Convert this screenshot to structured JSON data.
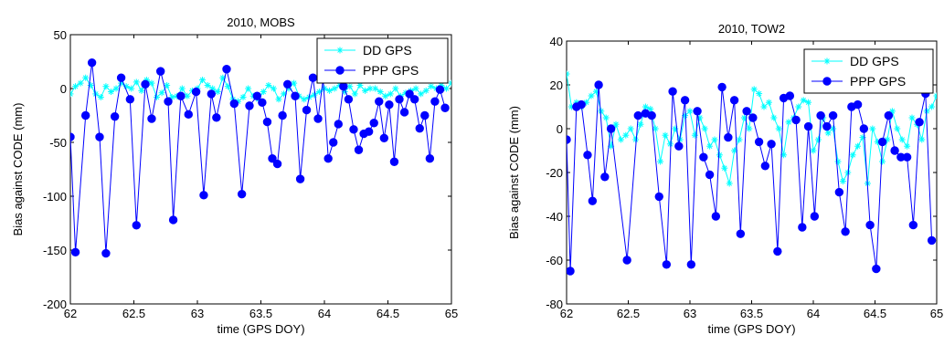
{
  "colors": {
    "dd": "#00ffff",
    "ppp": "#0000ff",
    "ppp_fill": "#0000ff",
    "axis": "#000000",
    "background": "#ffffff"
  },
  "chart_data": [
    {
      "type": "line",
      "title": "2010, MOBS",
      "xlabel": "time (GPS DOY)",
      "ylabel": "Bias against CODE (mm)",
      "xlim": [
        62,
        65
      ],
      "ylim": [
        -200,
        50
      ],
      "xticks": [
        62,
        62.5,
        63,
        63.5,
        64,
        64.5,
        65
      ],
      "xtick_labels": [
        "62",
        "62.5",
        "63",
        "63.5",
        "64",
        "64.5",
        "65"
      ],
      "yticks": [
        -200,
        -150,
        -100,
        -50,
        0,
        50
      ],
      "ytick_labels": [
        "-200",
        "-150",
        "-100",
        "-50",
        "0",
        "50"
      ],
      "grid": false,
      "legend_position": "top-right",
      "series": [
        {
          "name": "DD GPS",
          "marker": "asterisk",
          "x": [
            62.0,
            62.04,
            62.08,
            62.12,
            62.16,
            62.2,
            62.24,
            62.28,
            62.32,
            62.36,
            62.4,
            62.44,
            62.48,
            62.52,
            62.56,
            62.6,
            62.64,
            62.68,
            62.72,
            62.76,
            62.8,
            62.84,
            62.88,
            62.92,
            62.96,
            63.0,
            63.04,
            63.08,
            63.12,
            63.16,
            63.2,
            63.24,
            63.28,
            63.32,
            63.36,
            63.4,
            63.44,
            63.48,
            63.52,
            63.56,
            63.6,
            63.64,
            63.68,
            63.72,
            63.76,
            63.8,
            63.84,
            63.88,
            63.92,
            63.96,
            64.0,
            64.04,
            64.08,
            64.12,
            64.16,
            64.2,
            64.24,
            64.28,
            64.32,
            64.36,
            64.4,
            64.44,
            64.48,
            64.52,
            64.56,
            64.6,
            64.64,
            64.68,
            64.72,
            64.76,
            64.8,
            64.84,
            64.88,
            64.92,
            64.96,
            65.0
          ],
          "values": [
            -5,
            2,
            5,
            10,
            3,
            -5,
            -8,
            2,
            -3,
            0,
            5,
            2,
            0,
            6,
            -2,
            8,
            5,
            -8,
            -4,
            3,
            -8,
            -7,
            0,
            -7,
            -2,
            0,
            8,
            3,
            0,
            -3,
            10,
            2,
            -10,
            -12,
            -8,
            0,
            -7,
            -10,
            -3,
            3,
            0,
            -10,
            -5,
            0,
            5,
            -7,
            -10,
            -8,
            -6,
            -3,
            0,
            -2,
            0,
            3,
            -3,
            2,
            -5,
            3,
            -2,
            0,
            0,
            -3,
            -7,
            -5,
            0,
            -7,
            -4,
            -2,
            0,
            -5,
            -2,
            2,
            0,
            3,
            0,
            5
          ]
        },
        {
          "name": "PPP GPS",
          "marker": "circle",
          "x": [
            62.0,
            62.04,
            62.12,
            62.17,
            62.23,
            62.28,
            62.35,
            62.4,
            62.47,
            62.52,
            62.59,
            62.64,
            62.71,
            62.77,
            62.81,
            62.87,
            62.93,
            62.99,
            63.05,
            63.11,
            63.15,
            63.23,
            63.29,
            63.35,
            63.41,
            63.47,
            63.51,
            63.55,
            63.59,
            63.63,
            63.67,
            63.71,
            63.77,
            63.81,
            63.86,
            63.91,
            63.95,
            63.99,
            64.03,
            64.07,
            64.11,
            64.15,
            64.19,
            64.23,
            64.27,
            64.31,
            64.35,
            64.39,
            64.43,
            64.47,
            64.51,
            64.55,
            64.59,
            64.63,
            64.67,
            64.71,
            64.75,
            64.79,
            64.83,
            64.87,
            64.91,
            64.95
          ],
          "values": [
            -45,
            -152,
            -25,
            24,
            -45,
            -153,
            -26,
            10,
            -10,
            -127,
            4,
            -28,
            16,
            -12,
            -122,
            -7,
            -24,
            -3,
            -99,
            -5,
            -27,
            18,
            -14,
            -98,
            -16,
            -7,
            -13,
            -31,
            -65,
            -70,
            -25,
            4,
            -7,
            -84,
            -20,
            10,
            -28,
            9,
            -65,
            -50,
            -33,
            2,
            -10,
            -38,
            -57,
            -42,
            -40,
            -32,
            -12,
            -46,
            -15,
            -68,
            -10,
            -22,
            -5,
            -10,
            -37,
            -25,
            -65,
            -12,
            -1,
            -18
          ]
        }
      ]
    },
    {
      "type": "line",
      "title": "2010, TOW2",
      "xlabel": "time (GPS DOY)",
      "ylabel": "Bias against CODE (mm)",
      "xlim": [
        62,
        65
      ],
      "ylim": [
        -80,
        40
      ],
      "xticks": [
        62,
        62.5,
        63,
        63.5,
        64,
        64.5,
        65
      ],
      "xtick_labels": [
        "62",
        "62.5",
        "63",
        "63.5",
        "64",
        "64.5",
        "65"
      ],
      "yticks": [
        -80,
        -60,
        -40,
        -20,
        0,
        20,
        40
      ],
      "ytick_labels": [
        "-80",
        "-60",
        "-40",
        "-20",
        "0",
        "20",
        "40"
      ],
      "grid": false,
      "legend_position": "top-right",
      "series": [
        {
          "name": "DD GPS",
          "marker": "asterisk",
          "x": [
            62.0,
            62.04,
            62.08,
            62.12,
            62.16,
            62.2,
            62.24,
            62.28,
            62.32,
            62.36,
            62.4,
            62.44,
            62.48,
            62.52,
            62.56,
            62.6,
            62.64,
            62.68,
            62.72,
            62.76,
            62.8,
            62.84,
            62.88,
            62.92,
            62.96,
            63.0,
            63.04,
            63.08,
            63.12,
            63.16,
            63.2,
            63.24,
            63.28,
            63.32,
            63.36,
            63.4,
            63.44,
            63.48,
            63.52,
            63.56,
            63.6,
            63.64,
            63.68,
            63.72,
            63.76,
            63.8,
            63.84,
            63.88,
            63.92,
            63.96,
            64.0,
            64.04,
            64.08,
            64.12,
            64.16,
            64.2,
            64.24,
            64.28,
            64.32,
            64.36,
            64.4,
            64.44,
            64.48,
            64.52,
            64.56,
            64.6,
            64.64,
            64.68,
            64.72,
            64.76,
            64.8,
            64.84,
            64.88,
            64.92,
            64.96,
            65.0
          ],
          "values": [
            25,
            10,
            12,
            10,
            12,
            15,
            17,
            8,
            5,
            -8,
            2,
            -5,
            -3,
            0,
            -5,
            2,
            10,
            9,
            0,
            -15,
            -3,
            -7,
            0,
            -5,
            6,
            8,
            -3,
            5,
            0,
            -8,
            -5,
            -12,
            -18,
            -25,
            -10,
            -5,
            5,
            0,
            18,
            16,
            10,
            12,
            5,
            0,
            -12,
            3,
            5,
            10,
            13,
            12,
            -10,
            -5,
            5,
            -2,
            0,
            -15,
            -24,
            -20,
            -12,
            -8,
            -4,
            -25,
            0,
            -6,
            -15,
            -5,
            8,
            0,
            -5,
            -8,
            5,
            2,
            -5,
            8,
            10,
            15
          ]
        },
        {
          "name": "PPP GPS",
          "marker": "circle",
          "x": [
            62.0,
            62.03,
            62.08,
            62.12,
            62.17,
            62.21,
            62.26,
            62.31,
            62.36,
            62.49,
            62.58,
            62.64,
            62.69,
            62.75,
            62.81,
            62.86,
            62.91,
            62.96,
            63.01,
            63.06,
            63.11,
            63.16,
            63.21,
            63.26,
            63.31,
            63.36,
            63.41,
            63.46,
            63.51,
            63.56,
            63.61,
            63.66,
            63.71,
            63.76,
            63.81,
            63.86,
            63.91,
            63.96,
            64.01,
            64.06,
            64.11,
            64.16,
            64.21,
            64.26,
            64.31,
            64.36,
            64.41,
            64.46,
            64.51,
            64.56,
            64.61,
            64.66,
            64.71,
            64.76,
            64.81,
            64.86,
            64.91,
            64.96
          ],
          "values": [
            -5,
            -65,
            10,
            11,
            -12,
            -33,
            20,
            -22,
            0,
            -60,
            6,
            7,
            6,
            -31,
            -62,
            17,
            -8,
            13,
            -62,
            8,
            -13,
            -21,
            -40,
            19,
            -4,
            13,
            -48,
            8,
            5,
            -6,
            -17,
            -7,
            -56,
            14,
            15,
            4,
            -45,
            1,
            -40,
            6,
            1,
            6,
            -29,
            -47,
            10,
            11,
            0,
            -44,
            -64,
            -6,
            6,
            -10,
            -13,
            -13,
            -44,
            3,
            16,
            -51
          ]
        }
      ]
    }
  ]
}
